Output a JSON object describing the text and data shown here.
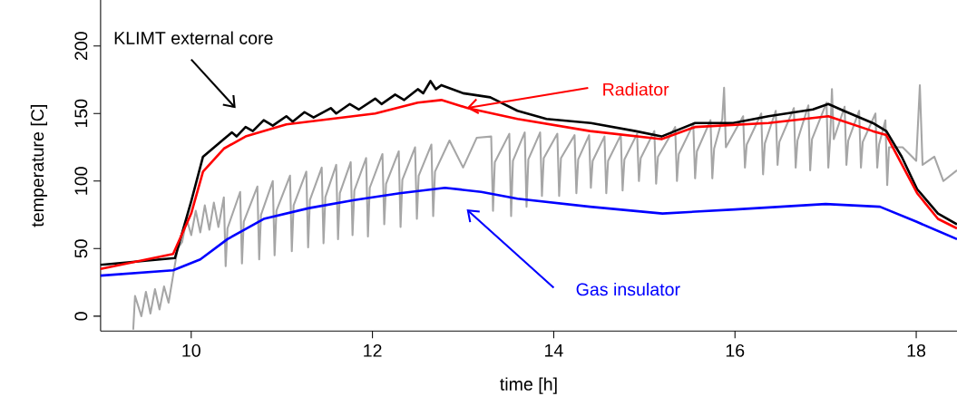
{
  "chart_data": {
    "type": "line",
    "xlabel": "time [h]",
    "ylabel": "temperature [C]",
    "xlim": [
      9,
      18.45
    ],
    "ylim": [
      -11,
      234
    ],
    "xticks": [
      10,
      12,
      14,
      16,
      18
    ],
    "yticks": [
      0,
      50,
      100,
      150,
      200
    ],
    "series": [
      {
        "color": "#a6a6a6",
        "x": [
          9.36,
          9.38,
          9.45,
          9.5,
          9.55,
          9.6,
          9.65,
          9.7,
          9.75,
          9.8,
          9.85,
          9.9,
          9.95,
          10.0,
          10.05,
          10.1,
          10.15,
          10.2,
          10.25,
          10.3,
          10.36,
          10.38,
          10.4,
          10.54,
          10.56,
          10.58,
          10.73,
          10.75,
          10.77,
          10.9,
          10.92,
          10.94,
          11.09,
          11.11,
          11.13,
          11.27,
          11.29,
          11.31,
          11.44,
          11.46,
          11.48,
          11.6,
          11.62,
          11.64,
          11.76,
          11.78,
          11.8,
          11.93,
          11.95,
          11.97,
          12.11,
          12.13,
          12.15,
          12.29,
          12.31,
          12.33,
          12.47,
          12.49,
          12.51,
          12.65,
          12.67,
          12.69,
          12.85,
          13.0,
          13.15,
          13.31,
          13.33,
          13.35,
          13.51,
          13.53,
          13.55,
          13.68,
          13.7,
          13.72,
          13.85,
          13.87,
          13.89,
          14.04,
          14.06,
          14.08,
          14.23,
          14.25,
          14.27,
          14.39,
          14.41,
          14.43,
          14.56,
          14.58,
          14.6,
          14.74,
          14.76,
          14.78,
          14.92,
          14.94,
          14.96,
          15.11,
          15.13,
          15.15,
          15.34,
          15.36,
          15.38,
          15.54,
          15.56,
          15.58,
          15.73,
          15.75,
          15.77,
          15.86,
          15.88,
          15.9,
          16.09,
          16.11,
          16.13,
          16.29,
          16.31,
          16.33,
          16.45,
          16.47,
          16.49,
          16.65,
          16.67,
          16.69,
          16.81,
          16.83,
          16.85,
          17.01,
          17.03,
          17.05,
          17.07,
          17.09,
          17.21,
          17.23,
          17.25,
          17.37,
          17.39,
          17.41,
          17.55,
          17.57,
          17.59,
          17.66,
          17.68,
          17.7,
          17.85,
          18.0,
          18.04,
          18.07,
          18.2,
          18.3,
          18.45
        ],
        "values": [
          -10,
          15,
          0,
          18,
          2,
          20,
          5,
          22,
          10,
          30,
          50,
          55,
          72,
          60,
          78,
          62,
          82,
          64,
          84,
          66,
          88,
          37,
          65,
          92,
          39,
          70,
          96,
          42,
          75,
          100,
          45,
          78,
          104,
          48,
          82,
          107,
          51,
          86,
          110,
          54,
          88,
          112,
          57,
          91,
          114,
          60,
          93,
          117,
          59,
          95,
          120,
          68,
          98,
          122,
          66,
          101,
          125,
          72,
          104,
          127,
          74,
          107,
          130,
          110,
          132,
          133,
          78,
          114,
          135,
          74,
          115,
          136,
          81,
          116,
          136,
          89,
          117,
          135,
          89,
          117,
          134,
          91,
          116,
          134,
          95,
          115,
          133,
          91,
          115,
          134,
          93,
          116,
          135,
          100,
          117,
          137,
          98,
          118,
          140,
          100,
          120,
          142,
          102,
          122,
          145,
          102,
          124,
          146,
          169,
          125,
          148,
          110,
          127,
          150,
          105,
          128,
          152,
          112,
          129,
          154,
          110,
          130,
          156,
          108,
          131,
          158,
          110,
          131,
          168,
          131,
          155,
          112,
          130,
          152,
          110,
          129,
          150,
          110,
          127,
          145,
          97,
          125,
          125,
          115,
          171,
          112,
          118,
          100,
          108
        ]
      },
      {
        "name": "KLIMT external core",
        "color": "#000000",
        "x": [
          9.0,
          9.82,
          10.0,
          10.13,
          10.36,
          10.45,
          10.5,
          10.6,
          10.68,
          10.8,
          10.9,
          11.05,
          11.12,
          11.25,
          11.35,
          11.54,
          11.6,
          11.75,
          11.85,
          12.03,
          12.1,
          12.25,
          12.35,
          12.5,
          12.56,
          12.64,
          12.7,
          12.76,
          13.0,
          13.3,
          13.6,
          13.92,
          14.41,
          14.9,
          15.19,
          15.56,
          15.98,
          16.37,
          16.86,
          17.03,
          17.2,
          17.52,
          17.67,
          17.84,
          18.01,
          18.24,
          18.45
        ],
        "values": [
          38,
          43,
          85,
          118,
          131,
          136,
          133,
          140,
          137,
          145,
          141,
          148,
          144,
          151,
          147,
          154,
          150,
          157,
          153,
          161,
          157,
          164,
          160,
          168,
          165,
          174,
          168,
          171,
          165,
          162,
          152,
          146,
          143,
          137,
          133,
          143,
          143,
          148,
          153,
          157,
          152,
          143,
          137,
          118,
          94,
          76,
          68
        ]
      },
      {
        "name": "Radiator",
        "color": "#ff0000",
        "x": [
          9.0,
          9.8,
          10.0,
          10.13,
          10.36,
          10.6,
          11.05,
          11.54,
          12.03,
          12.5,
          12.76,
          13.05,
          13.6,
          14.4,
          15.19,
          15.56,
          16.37,
          17.03,
          17.52,
          17.67,
          18.01,
          18.24,
          18.45
        ],
        "values": [
          35,
          46,
          76,
          107,
          124,
          133,
          142,
          146,
          150,
          158,
          160,
          154,
          146,
          137,
          131,
          140,
          143,
          148,
          137,
          134,
          91,
          72,
          65
        ]
      },
      {
        "name": "Gas insulator",
        "color": "#0000ff",
        "x": [
          9.0,
          9.8,
          10.1,
          10.4,
          10.8,
          11.3,
          11.8,
          12.3,
          12.8,
          13.2,
          13.6,
          14.4,
          15.2,
          16.0,
          17.0,
          17.6,
          18.0,
          18.45
        ],
        "values": [
          30,
          34,
          42,
          57,
          72,
          80,
          86,
          91,
          95,
          92,
          87,
          81,
          76,
          79,
          83,
          81,
          70,
          57
        ]
      }
    ]
  }
}
